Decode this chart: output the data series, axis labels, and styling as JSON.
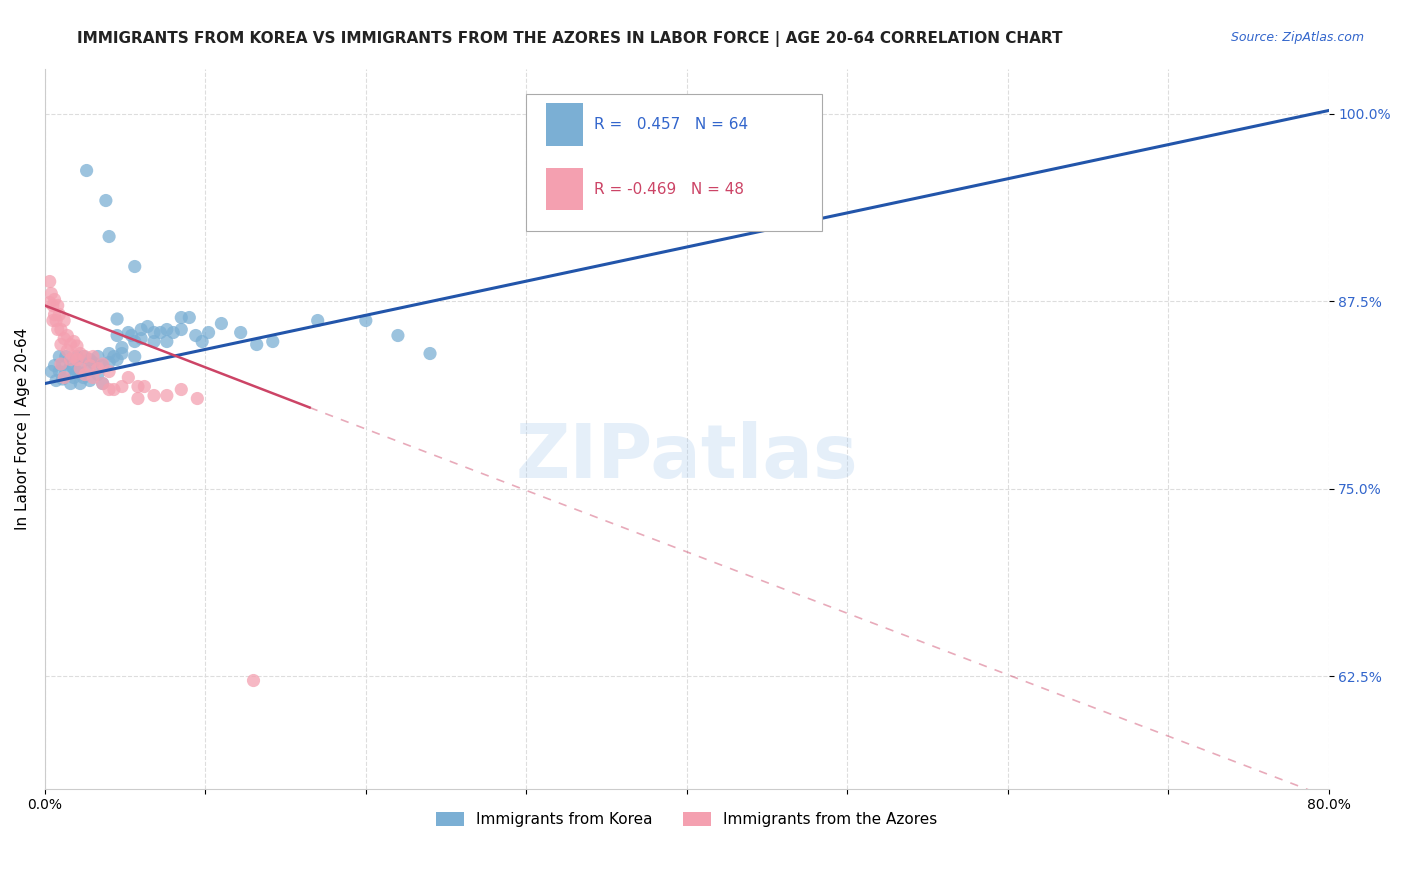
{
  "title": "IMMIGRANTS FROM KOREA VS IMMIGRANTS FROM THE AZORES IN LABOR FORCE | AGE 20-64 CORRELATION CHART",
  "source": "Source: ZipAtlas.com",
  "ylabel": "In Labor Force | Age 20-64",
  "xlim": [
    0.0,
    0.8
  ],
  "ylim": [
    0.55,
    1.03
  ],
  "yticks": [
    0.625,
    0.75,
    0.875,
    1.0
  ],
  "ytick_labels": [
    "62.5%",
    "75.0%",
    "87.5%",
    "100.0%"
  ],
  "xticks": [
    0.0,
    0.1,
    0.2,
    0.3,
    0.4,
    0.5,
    0.6,
    0.7,
    0.8
  ],
  "xtick_labels": [
    "0.0%",
    "",
    "",
    "",
    "",
    "",
    "",
    "",
    "80.0%"
  ],
  "korea_R": 0.457,
  "korea_N": 64,
  "azores_R": -0.469,
  "azores_N": 48,
  "korea_color": "#7BAFD4",
  "azores_color": "#F4A0B0",
  "korea_line_color": "#2255AA",
  "azores_line_color": "#CC4466",
  "korea_scatter": [
    [
      0.004,
      0.828
    ],
    [
      0.006,
      0.832
    ],
    [
      0.007,
      0.822
    ],
    [
      0.009,
      0.838
    ],
    [
      0.009,
      0.828
    ],
    [
      0.011,
      0.833
    ],
    [
      0.011,
      0.823
    ],
    [
      0.013,
      0.838
    ],
    [
      0.013,
      0.828
    ],
    [
      0.016,
      0.832
    ],
    [
      0.016,
      0.82
    ],
    [
      0.018,
      0.83
    ],
    [
      0.018,
      0.824
    ],
    [
      0.02,
      0.838
    ],
    [
      0.02,
      0.828
    ],
    [
      0.022,
      0.832
    ],
    [
      0.022,
      0.82
    ],
    [
      0.024,
      0.838
    ],
    [
      0.024,
      0.824
    ],
    [
      0.026,
      0.828
    ],
    [
      0.028,
      0.836
    ],
    [
      0.028,
      0.822
    ],
    [
      0.03,
      0.834
    ],
    [
      0.033,
      0.838
    ],
    [
      0.033,
      0.826
    ],
    [
      0.036,
      0.832
    ],
    [
      0.036,
      0.82
    ],
    [
      0.04,
      0.834
    ],
    [
      0.04,
      0.84
    ],
    [
      0.043,
      0.838
    ],
    [
      0.045,
      0.836
    ],
    [
      0.045,
      0.852
    ],
    [
      0.045,
      0.863
    ],
    [
      0.048,
      0.844
    ],
    [
      0.048,
      0.84
    ],
    [
      0.052,
      0.854
    ],
    [
      0.054,
      0.852
    ],
    [
      0.056,
      0.848
    ],
    [
      0.056,
      0.838
    ],
    [
      0.06,
      0.856
    ],
    [
      0.06,
      0.85
    ],
    [
      0.064,
      0.858
    ],
    [
      0.068,
      0.854
    ],
    [
      0.068,
      0.848
    ],
    [
      0.072,
      0.854
    ],
    [
      0.076,
      0.856
    ],
    [
      0.076,
      0.848
    ],
    [
      0.08,
      0.854
    ],
    [
      0.085,
      0.864
    ],
    [
      0.085,
      0.856
    ],
    [
      0.09,
      0.864
    ],
    [
      0.094,
      0.852
    ],
    [
      0.098,
      0.848
    ],
    [
      0.102,
      0.854
    ],
    [
      0.11,
      0.86
    ],
    [
      0.122,
      0.854
    ],
    [
      0.132,
      0.846
    ],
    [
      0.142,
      0.848
    ],
    [
      0.026,
      0.962
    ],
    [
      0.038,
      0.942
    ],
    [
      0.04,
      0.918
    ],
    [
      0.056,
      0.898
    ],
    [
      0.17,
      0.862
    ],
    [
      0.2,
      0.862
    ],
    [
      0.22,
      0.852
    ],
    [
      0.24,
      0.84
    ]
  ],
  "azores_scatter": [
    [
      0.003,
      0.888
    ],
    [
      0.003,
      0.874
    ],
    [
      0.004,
      0.88
    ],
    [
      0.005,
      0.872
    ],
    [
      0.005,
      0.862
    ],
    [
      0.006,
      0.876
    ],
    [
      0.006,
      0.866
    ],
    [
      0.007,
      0.862
    ],
    [
      0.008,
      0.872
    ],
    [
      0.008,
      0.856
    ],
    [
      0.009,
      0.866
    ],
    [
      0.01,
      0.856
    ],
    [
      0.01,
      0.846
    ],
    [
      0.012,
      0.862
    ],
    [
      0.012,
      0.85
    ],
    [
      0.014,
      0.852
    ],
    [
      0.014,
      0.842
    ],
    [
      0.016,
      0.846
    ],
    [
      0.016,
      0.836
    ],
    [
      0.018,
      0.848
    ],
    [
      0.018,
      0.838
    ],
    [
      0.02,
      0.845
    ],
    [
      0.02,
      0.836
    ],
    [
      0.022,
      0.84
    ],
    [
      0.022,
      0.83
    ],
    [
      0.025,
      0.838
    ],
    [
      0.025,
      0.826
    ],
    [
      0.028,
      0.832
    ],
    [
      0.03,
      0.838
    ],
    [
      0.03,
      0.824
    ],
    [
      0.033,
      0.83
    ],
    [
      0.036,
      0.833
    ],
    [
      0.036,
      0.82
    ],
    [
      0.04,
      0.828
    ],
    [
      0.04,
      0.816
    ],
    [
      0.043,
      0.816
    ],
    [
      0.048,
      0.818
    ],
    [
      0.052,
      0.824
    ],
    [
      0.058,
      0.818
    ],
    [
      0.058,
      0.81
    ],
    [
      0.062,
      0.818
    ],
    [
      0.068,
      0.812
    ],
    [
      0.076,
      0.812
    ],
    [
      0.085,
      0.816
    ],
    [
      0.095,
      0.81
    ],
    [
      0.01,
      0.833
    ],
    [
      0.13,
      0.622
    ],
    [
      0.012,
      0.824
    ]
  ],
  "korea_trendline": [
    [
      0.0,
      0.82
    ],
    [
      0.8,
      1.002
    ]
  ],
  "azores_trendline_solid": [
    [
      0.0,
      0.872
    ],
    [
      0.165,
      0.804
    ]
  ],
  "azores_trendline_dash": [
    [
      0.165,
      0.804
    ],
    [
      0.8,
      0.544
    ]
  ],
  "background_color": "#FFFFFF",
  "grid_color": "#DDDDDD",
  "watermark": "ZIPatlas",
  "title_fontsize": 11,
  "axis_label_fontsize": 11,
  "tick_fontsize": 10,
  "legend_fontsize": 11
}
